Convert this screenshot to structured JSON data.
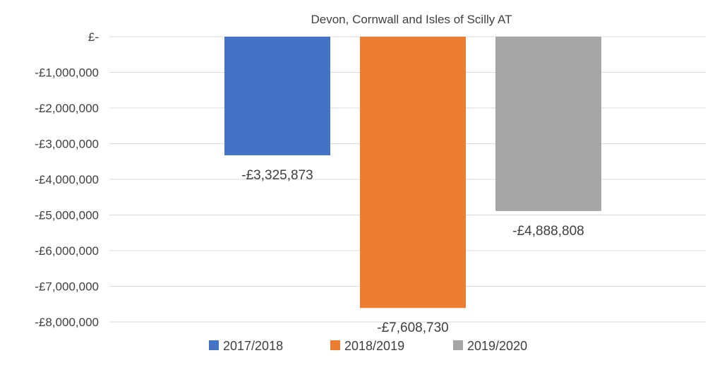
{
  "chart_data": {
    "type": "bar",
    "title": "Devon, Cornwall and Isles of Scilly AT",
    "xlabel": "",
    "ylabel": "",
    "categories": [
      ""
    ],
    "ylim": [
      -8000000,
      0
    ],
    "y_ticks": [
      0,
      -1000000,
      -2000000,
      -3000000,
      -4000000,
      -5000000,
      -6000000,
      -7000000,
      -8000000
    ],
    "y_tick_labels": [
      "£-",
      "-£1,000,000",
      "-£2,000,000",
      "-£3,000,000",
      "-£4,000,000",
      "-£5,000,000",
      "-£6,000,000",
      "-£7,000,000",
      "-£8,000,000"
    ],
    "grid": true,
    "legend_position": "bottom",
    "series": [
      {
        "name": "2017/2018",
        "values": [
          -3325873
        ],
        "label": "-£3,325,873",
        "color": "#4472C4"
      },
      {
        "name": "2018/2019",
        "values": [
          -7608730
        ],
        "label": "-£7,608,730",
        "color": "#ED7D31"
      },
      {
        "name": "2019/2020",
        "values": [
          -4888808
        ],
        "label": "-£4,888,808",
        "color": "#A5A5A5"
      }
    ]
  }
}
